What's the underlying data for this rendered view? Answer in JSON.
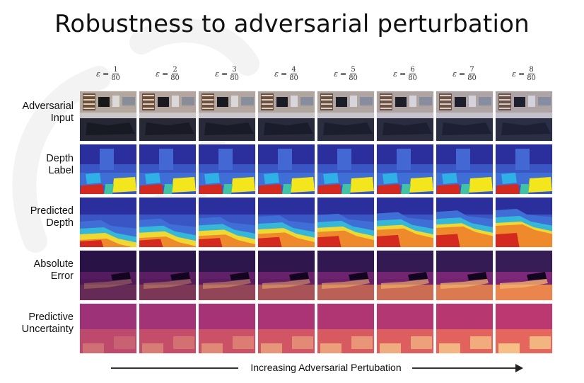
{
  "title": "Robustness to adversarial perturbation",
  "epsilon": {
    "symbol": "ε",
    "equals": "=",
    "columns": [
      {
        "num": "1",
        "den": "80"
      },
      {
        "num": "2",
        "den": "80"
      },
      {
        "num": "3",
        "den": "80"
      },
      {
        "num": "4",
        "den": "80"
      },
      {
        "num": "5",
        "den": "80"
      },
      {
        "num": "6",
        "den": "80"
      },
      {
        "num": "7",
        "den": "80"
      },
      {
        "num": "8",
        "den": "80"
      }
    ]
  },
  "rows": [
    {
      "label_line1": "Adversarial",
      "label_line2": "Input",
      "kind": "input"
    },
    {
      "label_line1": "Depth",
      "label_line2": "Label",
      "kind": "depth_label"
    },
    {
      "label_line1": "Predicted",
      "label_line2": "Depth",
      "kind": "pred_depth"
    },
    {
      "label_line1": "Absolute",
      "label_line2": "Error",
      "kind": "abs_error"
    },
    {
      "label_line1": "Predictive",
      "label_line2": "Uncertainty",
      "kind": "uncertainty"
    }
  ],
  "arrow": {
    "label": "Increasing Adversarial Pertubation"
  },
  "colors": {
    "depth_far": "#2b2f9e",
    "depth_mid": "#3f6fd6",
    "depth_near_yellow": "#f3e61c",
    "depth_near_red": "#d4291f",
    "error_low": "#1d0b3a",
    "error_mid": "#8a2a7e",
    "error_high": "#f08a4b",
    "uncert_mid": "#c23a6e",
    "uncert_high": "#f6c98a"
  }
}
